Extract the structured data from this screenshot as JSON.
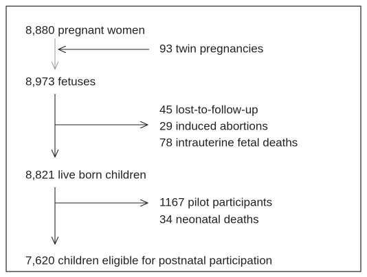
{
  "nodes": [
    {
      "label": "8,880 pregnant women"
    },
    {
      "label": "8,973 fetuses"
    },
    {
      "label": "8,821 live born children"
    },
    {
      "label": "7,620 children eligible for postnatal participation"
    }
  ],
  "steps": [
    {
      "notes": [
        "93 twin pregnancies"
      ]
    },
    {
      "notes": [
        "45 lost-to-follow-up",
        "29 induced abortions",
        "78 intrauterine fetal deaths"
      ]
    },
    {
      "notes": [
        "1167 pilot participants",
        "34 neonatal deaths"
      ]
    }
  ]
}
